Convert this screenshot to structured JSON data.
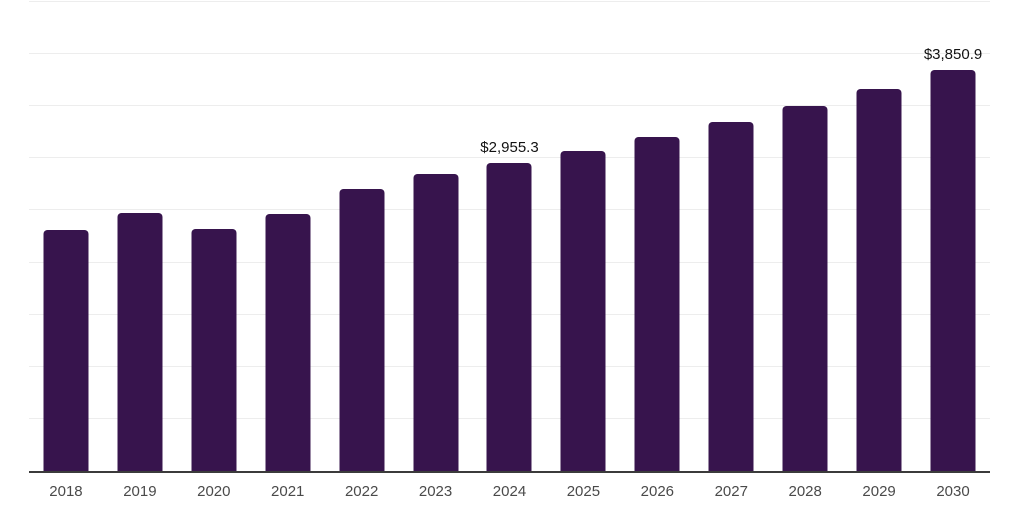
{
  "chart_data": {
    "type": "bar",
    "title": "",
    "xlabel": "",
    "ylabel": "",
    "categories": [
      "2018",
      "2019",
      "2020",
      "2021",
      "2022",
      "2023",
      "2024",
      "2025",
      "2026",
      "2027",
      "2028",
      "2029",
      "2030"
    ],
    "values": [
      2316,
      2474,
      2321,
      2464,
      2708,
      2852,
      2955.3,
      3067,
      3201,
      3345,
      3498,
      3665,
      3850.9
    ],
    "data_labels": [
      "",
      "",
      "",
      "",
      "",
      "",
      "$2,955.3",
      "",
      "",
      "",
      "",
      "",
      "$3,850.9"
    ],
    "ylim": [
      0,
      4500
    ],
    "gridline_step": 500,
    "grid": "horizontal",
    "legend_position": "none",
    "y_axis_tick_labels_visible": false,
    "colors": {
      "bar": "#37144D",
      "data_label": "#121212",
      "x_tick_label": "#4a4a4a",
      "gridline": "#ededed",
      "axis_line": "#3b3b3b",
      "background": "#ffffff"
    }
  }
}
